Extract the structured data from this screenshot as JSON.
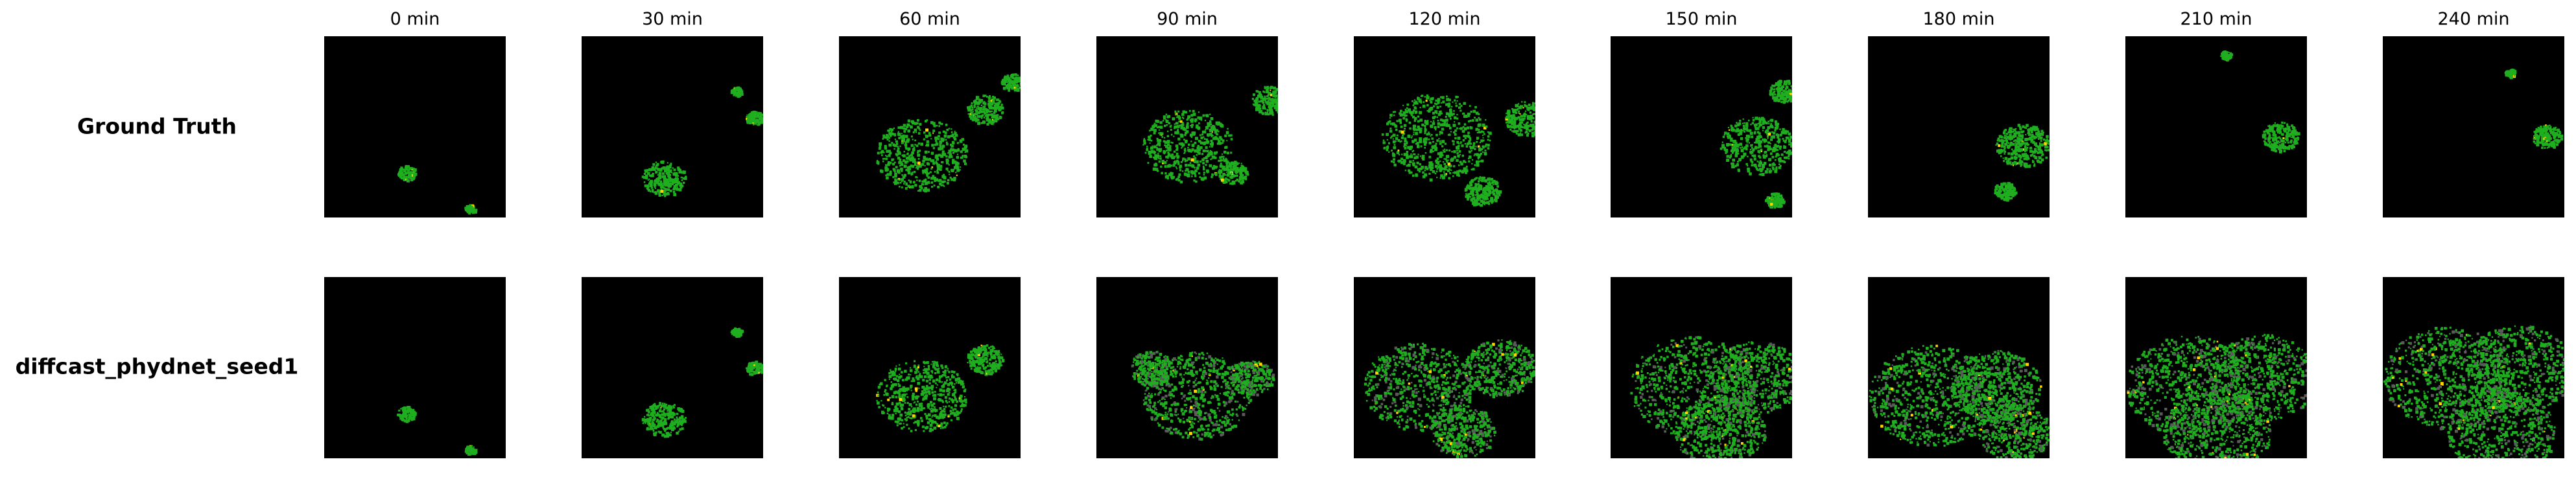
{
  "columns": [
    "0 min",
    "30 min",
    "60 min",
    "90 min",
    "120 min",
    "150 min",
    "180 min",
    "210 min",
    "240 min"
  ],
  "rows": [
    {
      "label": "Ground Truth"
    },
    {
      "label": "diffcast_phydnet_seed1"
    }
  ],
  "colors": {
    "background": "#000000",
    "light_rain": "#1fae1f",
    "moderate_rain": "#ffd400",
    "heavy_rain": "#e0261f",
    "clutter": "#5a5a5a"
  }
}
